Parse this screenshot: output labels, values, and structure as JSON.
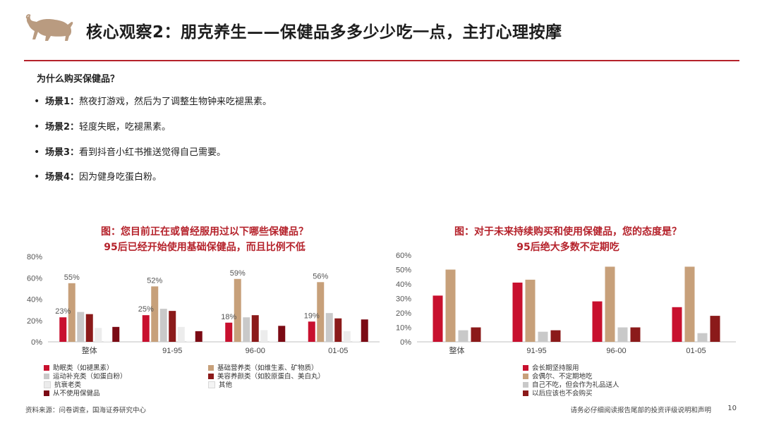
{
  "header": {
    "title": "核心观察2：朋克养生——保健品多多少少吃一点，主打心理按摩",
    "accent": "#b5222b"
  },
  "intro": {
    "question": "为什么购买保健品？",
    "scenarios": [
      {
        "label": "场景1：",
        "text": "熬夜打游戏，然后为了调整生物钟来吃褪黑素。"
      },
      {
        "label": "场景2：",
        "text": "轻度失眠，吃褪黑素。"
      },
      {
        "label": "场景3：",
        "text": "看到抖音小红书推送觉得自己需要。"
      },
      {
        "label": "场景4：",
        "text": "因为健身吃蛋白粉。"
      }
    ]
  },
  "charts": {
    "left": {
      "title1": "图：您目前正在或曾经服用过以下哪些保健品？",
      "title2": "95后已经开始使用基础保健品，而且比例不低"
    },
    "right": {
      "title1": "图：对于未来持续购买和使用保健品，您的态度是？",
      "title2": "95后绝大多数不定期吃"
    }
  },
  "chart_data": [
    {
      "type": "bar",
      "title": "图：您目前正在或曾经服用过以下哪些保健品？",
      "subtitle": "95后已经开始使用基础保健品，而且比例不低",
      "categories": [
        "整体",
        "91-95",
        "96-00",
        "01-05"
      ],
      "ylim": [
        0,
        80
      ],
      "yticks": [
        "0%",
        "20%",
        "40%",
        "60%",
        "80%"
      ],
      "grid": false,
      "legend_position": "bottom",
      "series": [
        {
          "name": "助眠类（如褪黑素）",
          "color": "#c8102e",
          "values": [
            23,
            25,
            18,
            19
          ]
        },
        {
          "name": "基础营养类（如维生素、矿物质）",
          "color": "#c7a07a",
          "values": [
            55,
            52,
            59,
            56
          ]
        },
        {
          "name": "运动补充类（如蛋白粉）",
          "color": "#c9c9c9",
          "values": [
            28,
            31,
            23,
            27
          ]
        },
        {
          "name": "美容养颜类（如胶原蛋白、美白丸）",
          "color": "#8b1a1a",
          "values": [
            26,
            29,
            25,
            22
          ]
        },
        {
          "name": "抗衰老类",
          "color": "#ececec",
          "values": [
            13,
            14,
            11,
            10
          ]
        },
        {
          "name": "其他",
          "color": "#f4f4f4",
          "values": [
            1,
            1,
            1,
            1
          ]
        },
        {
          "name": "从不使用保健品",
          "color": "#7b0a14",
          "values": [
            14,
            10,
            15,
            21
          ]
        }
      ],
      "data_labels": [
        {
          "series": 0,
          "index": 0,
          "text": "23%"
        },
        {
          "series": 1,
          "index": 0,
          "text": "55%"
        },
        {
          "series": 0,
          "index": 1,
          "text": "25%"
        },
        {
          "series": 1,
          "index": 1,
          "text": "52%"
        },
        {
          "series": 0,
          "index": 2,
          "text": "18%"
        },
        {
          "series": 1,
          "index": 2,
          "text": "59%"
        },
        {
          "series": 0,
          "index": 3,
          "text": "19%"
        },
        {
          "series": 1,
          "index": 3,
          "text": "56%"
        }
      ]
    },
    {
      "type": "bar",
      "title": "图：对于未来持续购买和使用保健品，您的态度是？",
      "subtitle": "95后绝大多数不定期吃",
      "categories": [
        "整体",
        "91-95",
        "96-00",
        "01-05"
      ],
      "ylim": [
        0,
        60
      ],
      "yticks": [
        "0%",
        "10%",
        "20%",
        "30%",
        "40%",
        "50%",
        "60%"
      ],
      "grid": false,
      "legend_position": "bottom",
      "series": [
        {
          "name": "会长期坚持服用",
          "color": "#c8102e",
          "values": [
            32,
            41,
            28,
            24
          ]
        },
        {
          "name": "会偶尔、不定期地吃",
          "color": "#c7a07a",
          "values": [
            50,
            43,
            52,
            52
          ]
        },
        {
          "name": "自己不吃，但会作为礼品送人",
          "color": "#c9c9c9",
          "values": [
            8,
            7,
            10,
            6
          ]
        },
        {
          "name": "以后应该也不会购买",
          "color": "#8b1a1a",
          "values": [
            10,
            8,
            10,
            18
          ]
        }
      ],
      "data_labels": []
    }
  ],
  "legend_left": [
    {
      "name": "助眠类（如褪黑素）",
      "color": "#c8102e"
    },
    {
      "name": "基础营养类（如维生素、矿物质）",
      "color": "#c7a07a"
    },
    {
      "name": "运动补充类（如蛋白粉）",
      "color": "#c9c9c9"
    },
    {
      "name": "美容养颜类（如胶原蛋白、美白丸）",
      "color": "#8b1a1a"
    },
    {
      "name": "抗衰老类",
      "color": "#ececec"
    },
    {
      "name": "其他",
      "color": "#f4f4f4"
    },
    {
      "name": "从不使用保健品",
      "color": "#7b0a14"
    }
  ],
  "legend_right": [
    {
      "name": "会长期坚持服用",
      "color": "#c8102e"
    },
    {
      "name": "会偶尔、不定期地吃",
      "color": "#c7a07a"
    },
    {
      "name": "自己不吃，但会作为礼品送人",
      "color": "#c9c9c9"
    },
    {
      "name": "以后应该也不会购买",
      "color": "#8b1a1a"
    }
  ],
  "footer": {
    "source": "资料来源：问卷调查，国海证券研究中心",
    "disclaimer": "请务必仔细阅读报告尾部的投资评级说明和声明",
    "page": "10"
  }
}
